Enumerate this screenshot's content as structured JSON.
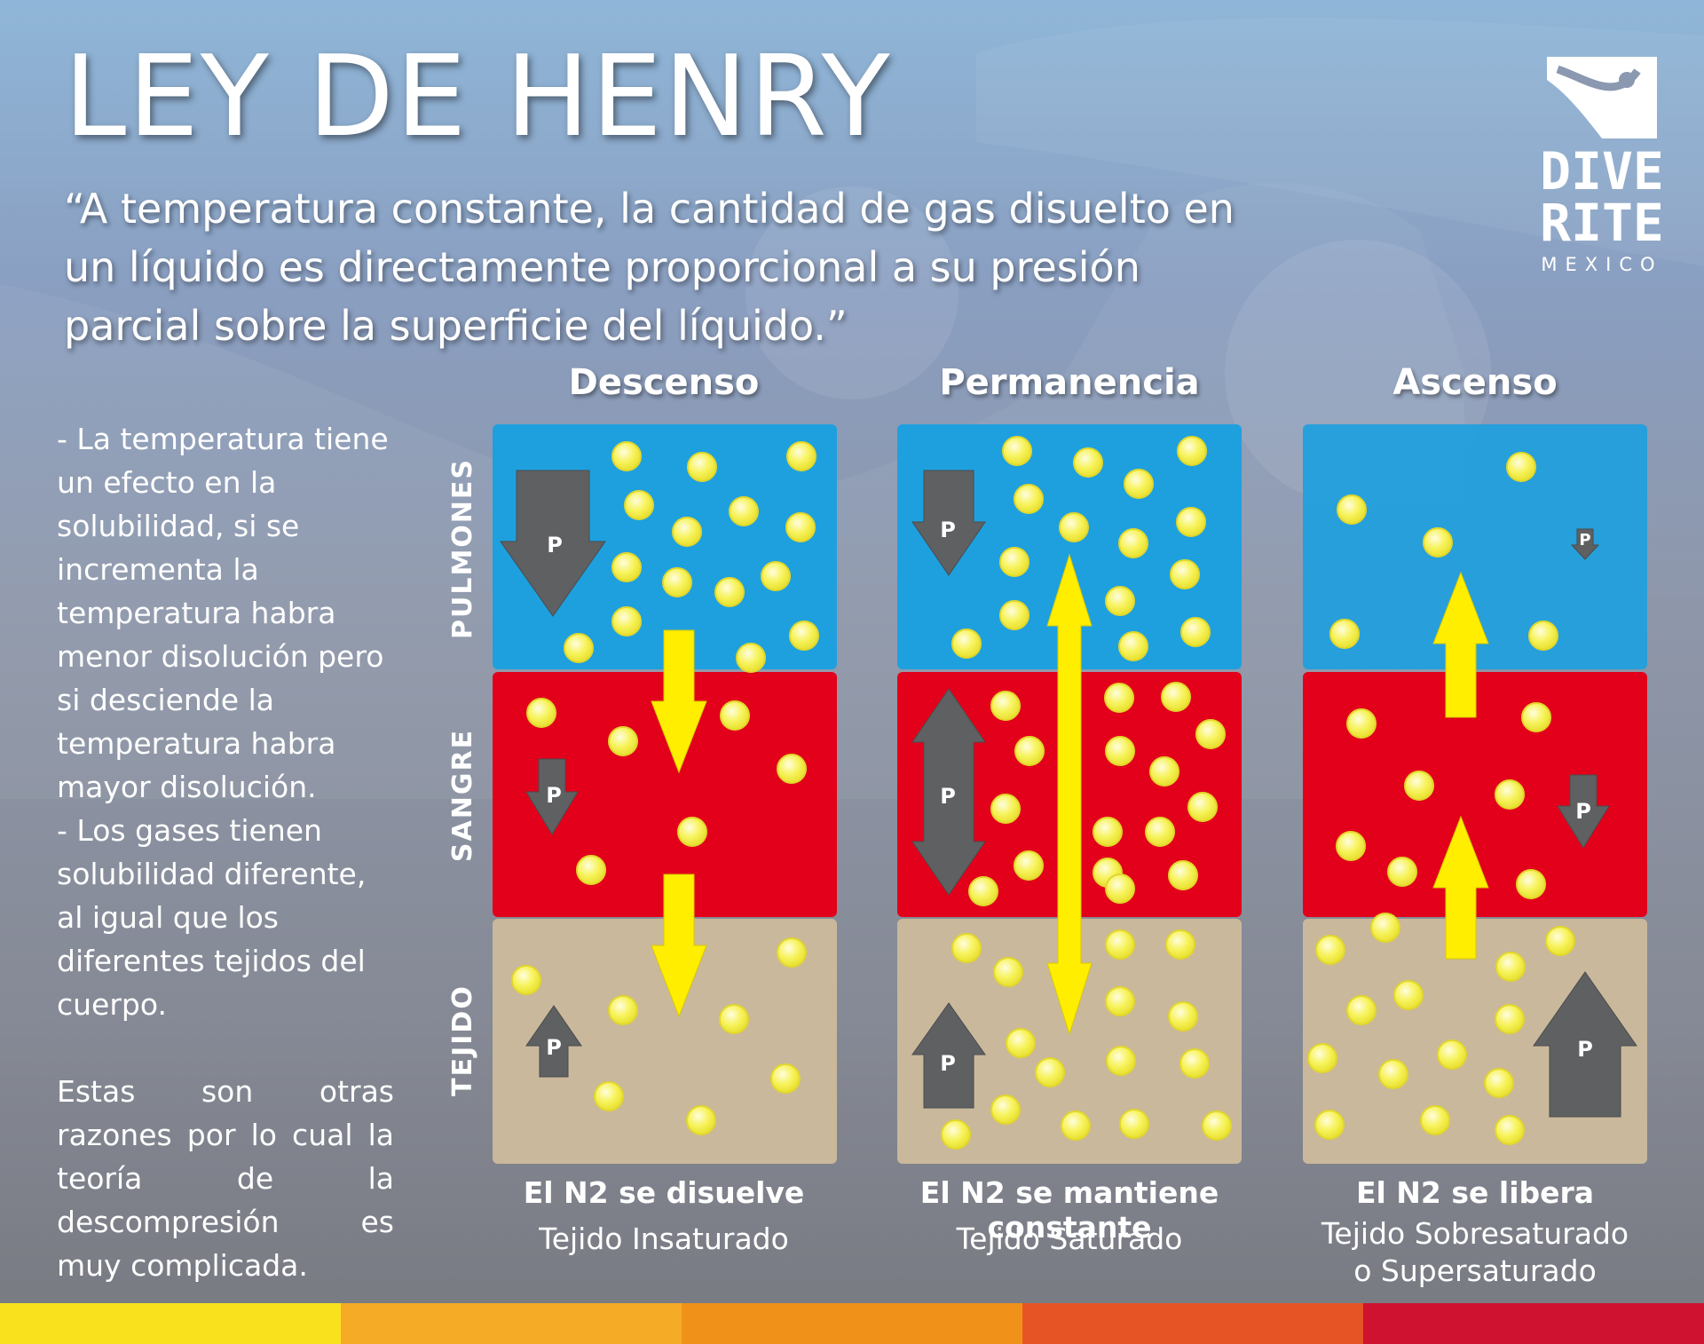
{
  "title": "LEY DE HENRY",
  "quote": "“A temperatura constante, la cantidad de gas disuelto en un líquido es directamente proporcional a su presión parcial sobre la superficie del líquido.”",
  "logo": {
    "line1": "DIVE",
    "line2": "RITE",
    "line3": "MEXICO"
  },
  "side_text": {
    "para1": "- La temperatura tiene un efecto en la solubilidad, si se incrementa la temperatura habra menor disolución pero si desciende la temperatura habra mayor disolución.",
    "para2": "- Los  gases tienen solubilidad diferente, al igual que los diferentes tejidos del cuerpo.",
    "para3": "Estas son otras razones por lo cual la teoría de la descompresión es muy complicada."
  },
  "rows": [
    "PULMONES",
    "SANGRE",
    "TEJIDO"
  ],
  "pressure_label": "P",
  "columns": [
    {
      "heading": "Descenso",
      "caption": "El N2 se disuelve",
      "subcaption": [
        "Tejido Insaturado"
      ]
    },
    {
      "heading": "Permanencia",
      "caption": "El N2 se mantiene constante",
      "subcaption": [
        "Tejido Saturado"
      ]
    },
    {
      "heading": "Ascenso",
      "caption": "El N2 se libera",
      "subcaption": [
        "Tejido Sobresaturado",
        "o Supersaturado"
      ]
    }
  ],
  "colors": {
    "lungs": "#1ea0de",
    "blood": "#e2001a",
    "tissue": "#c9b89b",
    "molecule": "#f6f25a",
    "flow_arrow": "#ffee00",
    "pressure_arrow": "#5f6062",
    "stripe": [
      "#f9e11e",
      "#f5ab25",
      "#f0911a",
      "#e65324",
      "#cf1230"
    ]
  }
}
